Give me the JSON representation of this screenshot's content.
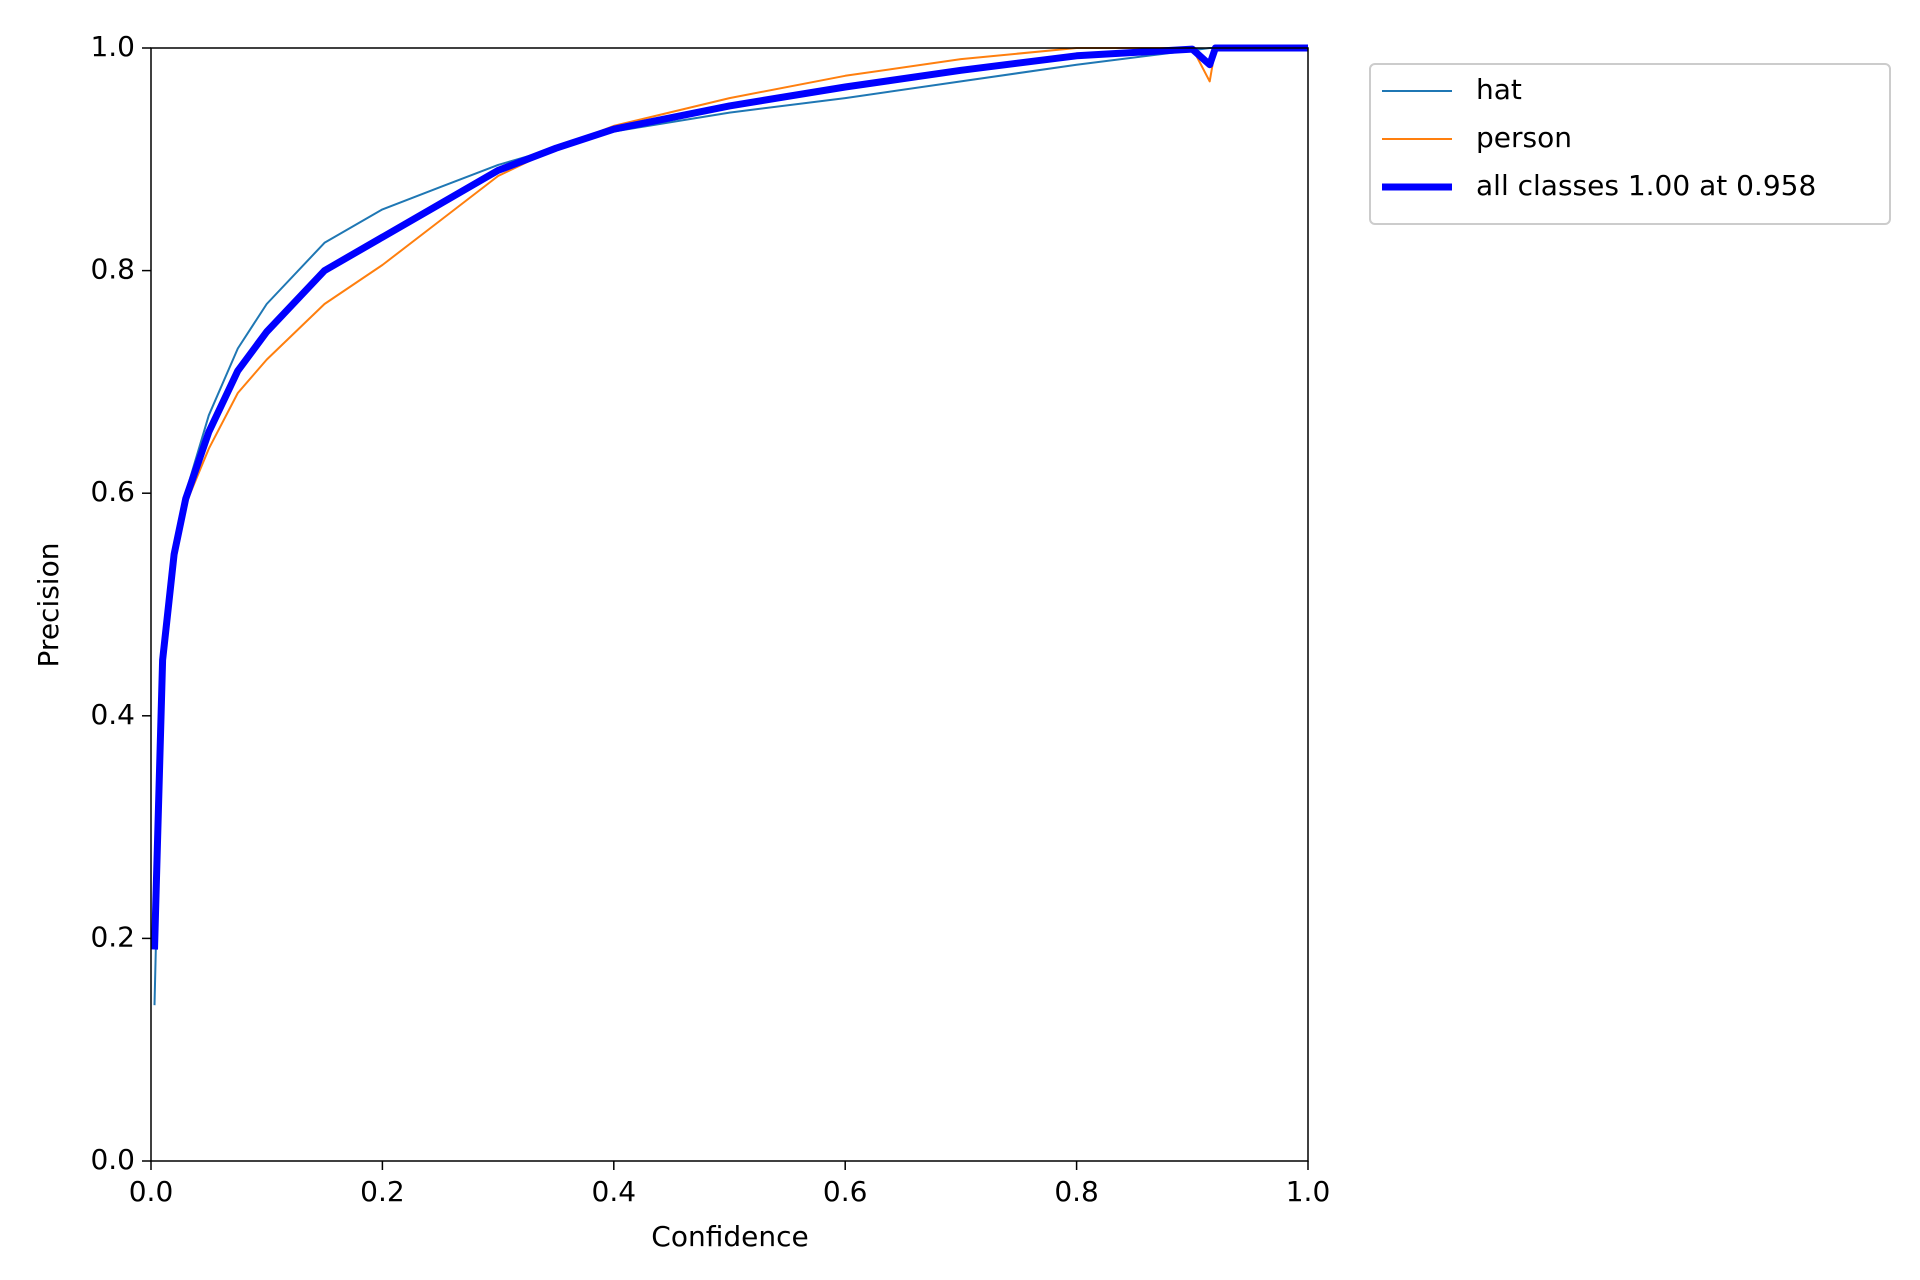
{
  "chart_data": {
    "type": "line",
    "xlabel": "Confidence",
    "ylabel": "Precision",
    "x": [
      0.003,
      0.01,
      0.02,
      0.03,
      0.05,
      0.075,
      0.1,
      0.15,
      0.2,
      0.25,
      0.3,
      0.35,
      0.4,
      0.5,
      0.6,
      0.7,
      0.8,
      0.9,
      0.915,
      0.92,
      1.0
    ],
    "series": [
      {
        "name": "hat",
        "color": "#1f77b4",
        "linewidth": 2,
        "values": [
          0.14,
          0.45,
          0.55,
          0.6,
          0.67,
          0.73,
          0.77,
          0.825,
          0.855,
          0.875,
          0.895,
          0.91,
          0.925,
          0.942,
          0.955,
          0.97,
          0.985,
          0.998,
          1.0,
          1.0,
          1.0
        ]
      },
      {
        "name": "person",
        "color": "#ff7f0e",
        "linewidth": 2,
        "values": [
          0.2,
          0.45,
          0.54,
          0.59,
          0.64,
          0.69,
          0.72,
          0.77,
          0.805,
          0.845,
          0.885,
          0.91,
          0.93,
          0.955,
          0.975,
          0.99,
          1.0,
          1.0,
          0.97,
          1.0,
          1.0
        ]
      },
      {
        "name": "all classes 1.00 at 0.958",
        "color": "#0000ff",
        "linewidth": 7,
        "values": [
          0.19,
          0.45,
          0.545,
          0.595,
          0.655,
          0.71,
          0.745,
          0.8,
          0.83,
          0.86,
          0.89,
          0.91,
          0.927,
          0.948,
          0.965,
          0.98,
          0.993,
          0.999,
          0.985,
          1.0,
          1.0
        ]
      }
    ],
    "xlim": [
      0,
      1
    ],
    "ylim": [
      0,
      1
    ],
    "xticks": [
      {
        "value": 0,
        "label": "0.0"
      },
      0.2,
      0.4,
      0.6,
      0.8,
      {
        "value": 1,
        "label": "1.0"
      }
    ],
    "yticks": [
      {
        "value": 0,
        "label": "0.0"
      },
      0.2,
      0.4,
      0.6,
      0.8,
      {
        "value": 1,
        "label": "1.0"
      }
    ],
    "grid": false,
    "legend": "outside-upper-right"
  }
}
